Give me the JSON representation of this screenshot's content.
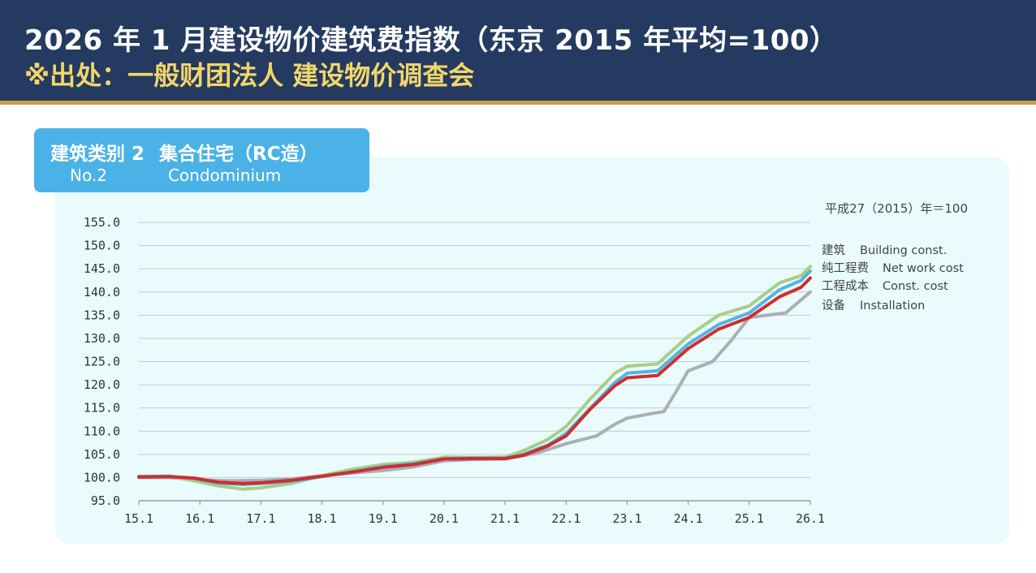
{
  "header": {
    "title": "2026 年 1 月建设物价建筑费指数（东京 2015 年平均=100）",
    "source": "※出处：一般财团法人 建设物价调查会"
  },
  "badge": {
    "category_cn": "建筑类别 2",
    "building_cn": "集合住宅（RC造）",
    "category_en": "No.2",
    "building_en": "Condominium"
  },
  "colors": {
    "header_bg": "#243a60",
    "accent_gold": "#c4a04a",
    "badge_bg": "#4ab2e6",
    "panel_bg": "#e9fbfc"
  },
  "chart_data": {
    "type": "line",
    "base_note": "平成27（2015）年＝100",
    "x_ticks": [
      "15.1",
      "16.1",
      "17.1",
      "18.1",
      "19.1",
      "20.1",
      "21.1",
      "22.1",
      "23.1",
      "24.1",
      "25.1",
      "26.1"
    ],
    "y_ticks": [
      "95.0",
      "100.0",
      "105.0",
      "110.0",
      "115.0",
      "120.0",
      "125.0",
      "130.0",
      "135.0",
      "140.0",
      "145.0",
      "150.0",
      "155.0"
    ],
    "ylim": [
      95,
      155
    ],
    "xlim": [
      2015.0,
      2026.0
    ],
    "grid": "horizontal",
    "legend_position": "right",
    "series": [
      {
        "name": "建筑",
        "name_en": "Building const.",
        "color": "#56b3e3",
        "points": [
          [
            2015.0,
            100.2
          ],
          [
            2015.5,
            100.3
          ],
          [
            2015.9,
            99.8
          ],
          [
            2016.3,
            98.8
          ],
          [
            2016.7,
            98.5
          ],
          [
            2017.0,
            98.7
          ],
          [
            2017.5,
            99.2
          ],
          [
            2018.0,
            100.2
          ],
          [
            2018.5,
            101.3
          ],
          [
            2019.0,
            102.4
          ],
          [
            2019.5,
            103.0
          ],
          [
            2020.0,
            104.1
          ],
          [
            2020.5,
            104.2
          ],
          [
            2021.0,
            104.2
          ],
          [
            2021.3,
            105.0
          ],
          [
            2021.7,
            107.0
          ],
          [
            2022.0,
            109.5
          ],
          [
            2022.4,
            115.0
          ],
          [
            2022.8,
            120.5
          ],
          [
            2023.0,
            122.5
          ],
          [
            2023.5,
            123.0
          ],
          [
            2024.0,
            128.8
          ],
          [
            2024.5,
            133.0
          ],
          [
            2025.0,
            135.5
          ],
          [
            2025.5,
            140.5
          ],
          [
            2025.85,
            142.5
          ],
          [
            2026.0,
            144.5
          ]
        ]
      },
      {
        "name": "纯工程费",
        "name_en": "Net work cost",
        "color": "#a6cf84",
        "points": [
          [
            2015.0,
            100.3
          ],
          [
            2015.5,
            100.3
          ],
          [
            2015.9,
            99.3
          ],
          [
            2016.3,
            98.2
          ],
          [
            2016.7,
            97.5
          ],
          [
            2017.0,
            97.8
          ],
          [
            2017.5,
            98.7
          ],
          [
            2018.0,
            100.4
          ],
          [
            2018.5,
            101.8
          ],
          [
            2019.0,
            102.8
          ],
          [
            2019.5,
            103.3
          ],
          [
            2020.0,
            104.4
          ],
          [
            2020.5,
            104.3
          ],
          [
            2021.0,
            104.4
          ],
          [
            2021.3,
            105.8
          ],
          [
            2021.7,
            108.2
          ],
          [
            2022.0,
            111.0
          ],
          [
            2022.4,
            117.0
          ],
          [
            2022.8,
            122.5
          ],
          [
            2023.0,
            124.0
          ],
          [
            2023.5,
            124.5
          ],
          [
            2024.0,
            130.5
          ],
          [
            2024.5,
            135.0
          ],
          [
            2025.0,
            137.0
          ],
          [
            2025.5,
            142.0
          ],
          [
            2025.85,
            143.5
          ],
          [
            2026.0,
            145.5
          ]
        ]
      },
      {
        "name": "工程成本",
        "name_en": "Const. cost",
        "color": "#d02d2d",
        "points": [
          [
            2015.0,
            100.1
          ],
          [
            2015.5,
            100.2
          ],
          [
            2015.9,
            99.9
          ],
          [
            2016.3,
            99.0
          ],
          [
            2016.7,
            98.7
          ],
          [
            2017.0,
            98.9
          ],
          [
            2017.5,
            99.4
          ],
          [
            2018.0,
            100.3
          ],
          [
            2018.5,
            101.2
          ],
          [
            2019.0,
            102.2
          ],
          [
            2019.5,
            102.8
          ],
          [
            2020.0,
            104.0
          ],
          [
            2020.5,
            104.1
          ],
          [
            2021.0,
            104.1
          ],
          [
            2021.3,
            104.8
          ],
          [
            2021.7,
            106.8
          ],
          [
            2022.0,
            109.0
          ],
          [
            2022.4,
            114.8
          ],
          [
            2022.8,
            119.8
          ],
          [
            2023.0,
            121.5
          ],
          [
            2023.5,
            122.0
          ],
          [
            2024.0,
            127.8
          ],
          [
            2024.5,
            132.0
          ],
          [
            2025.0,
            134.5
          ],
          [
            2025.5,
            139.0
          ],
          [
            2025.85,
            141.0
          ],
          [
            2026.0,
            143.0
          ]
        ]
      },
      {
        "name": "设备",
        "name_en": "Installation",
        "color": "#adadb8",
        "points": [
          [
            2015.0,
            100.0
          ],
          [
            2015.5,
            100.0
          ],
          [
            2016.0,
            99.5
          ],
          [
            2016.5,
            99.3
          ],
          [
            2017.0,
            99.4
          ],
          [
            2017.5,
            99.7
          ],
          [
            2018.0,
            100.4
          ],
          [
            2018.5,
            101.0
          ],
          [
            2019.0,
            101.5
          ],
          [
            2019.5,
            102.3
          ],
          [
            2020.0,
            103.6
          ],
          [
            2020.5,
            103.9
          ],
          [
            2021.0,
            104.0
          ],
          [
            2021.5,
            105.2
          ],
          [
            2022.0,
            107.3
          ],
          [
            2022.5,
            109.0
          ],
          [
            2022.8,
            111.5
          ],
          [
            2023.0,
            112.8
          ],
          [
            2023.4,
            113.8
          ],
          [
            2023.6,
            114.2
          ],
          [
            2023.8,
            118.5
          ],
          [
            2024.0,
            123.0
          ],
          [
            2024.4,
            125.0
          ],
          [
            2024.7,
            129.5
          ],
          [
            2025.0,
            134.5
          ],
          [
            2025.3,
            135.0
          ],
          [
            2025.6,
            135.5
          ],
          [
            2026.0,
            140.0
          ]
        ]
      }
    ]
  }
}
